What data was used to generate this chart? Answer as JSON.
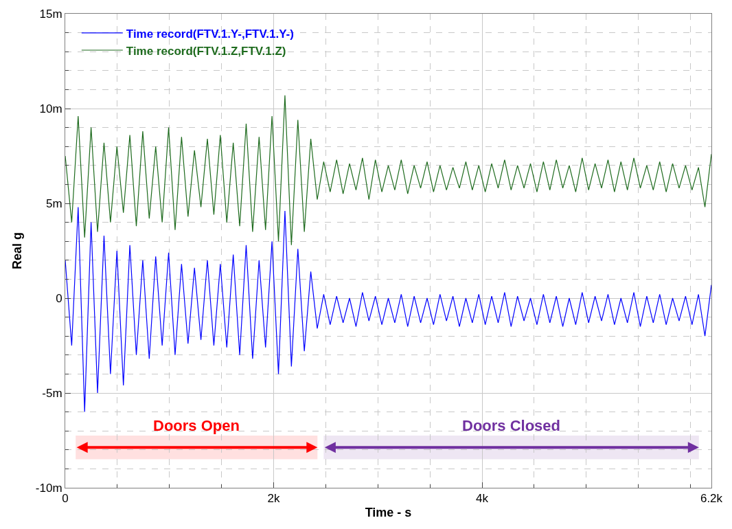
{
  "chart_data": {
    "type": "line",
    "xlabel": "Time - s",
    "ylabel": "Real g",
    "xlim": [
      0,
      6200
    ],
    "ylim": [
      -10,
      15
    ],
    "xticks": [
      0,
      {
        "value": 2000,
        "label": "2k"
      },
      {
        "value": 4000,
        "label": "4k"
      },
      {
        "value": 6200,
        "label": "6.2k"
      }
    ],
    "yticks": [
      {
        "value": -10,
        "label": "-10m"
      },
      {
        "value": -5,
        "label": "-5m"
      },
      0,
      {
        "value": 5,
        "label": "5m"
      },
      {
        "value": 10,
        "label": "10m"
      },
      {
        "value": 15,
        "label": "15m"
      }
    ],
    "grid": true,
    "legend": "top left",
    "line_style": "solid",
    "x": [
      0,
      62,
      124,
      186,
      248,
      310,
      372,
      434,
      496,
      558,
      620,
      682,
      744,
      806,
      868,
      930,
      992,
      1054,
      1116,
      1178,
      1240,
      1302,
      1364,
      1426,
      1488,
      1550,
      1612,
      1674,
      1736,
      1798,
      1860,
      1922,
      1984,
      2046,
      2108,
      2170,
      2232,
      2294,
      2356,
      2418,
      2480,
      2542,
      2604,
      2666,
      2728,
      2790,
      2852,
      2914,
      2976,
      3038,
      3100,
      3162,
      3224,
      3286,
      3348,
      3410,
      3472,
      3534,
      3596,
      3658,
      3720,
      3782,
      3844,
      3906,
      3968,
      4030,
      4092,
      4154,
      4216,
      4278,
      4340,
      4402,
      4464,
      4526,
      4588,
      4650,
      4712,
      4774,
      4836,
      4898,
      4960,
      5022,
      5084,
      5146,
      5208,
      5270,
      5332,
      5394,
      5456,
      5518,
      5580,
      5642,
      5704,
      5766,
      5828,
      5890,
      5952,
      6014,
      6076,
      6138,
      6200
    ],
    "series": [
      {
        "name": "Time record(FTV.1.Y-,FTV.1.Y-)",
        "color": "#0000ff",
        "values": [
          2.0,
          -2.5,
          4.8,
          -6.0,
          4.0,
          -5.0,
          3.3,
          -4.0,
          2.5,
          -4.6,
          2.8,
          -3.0,
          2.0,
          -3.2,
          2.2,
          -2.5,
          2.4,
          -3.0,
          1.8,
          -2.4,
          1.6,
          -2.2,
          2.0,
          -2.5,
          1.8,
          -2.6,
          2.3,
          -3.0,
          2.8,
          -3.2,
          2.0,
          -2.6,
          3.0,
          -4.0,
          4.6,
          -3.6,
          2.6,
          -2.8,
          1.4,
          -1.6,
          0.2,
          -1.4,
          0.1,
          -1.3,
          0.0,
          -1.5,
          0.3,
          -1.2,
          0.1,
          -1.4,
          0.0,
          -1.3,
          0.2,
          -1.5,
          0.1,
          -1.3,
          0.0,
          -1.4,
          0.2,
          -1.2,
          0.1,
          -1.5,
          0.0,
          -1.3,
          0.2,
          -1.4,
          0.1,
          -1.3,
          0.3,
          -1.5,
          0.1,
          -1.2,
          0.0,
          -1.4,
          0.2,
          -1.3,
          0.1,
          -1.5,
          0.0,
          -1.4,
          0.3,
          -1.3,
          0.1,
          -1.2,
          0.2,
          -1.4,
          0.0,
          -1.3,
          0.3,
          -1.5,
          0.1,
          -1.3,
          0.2,
          -1.4,
          0.0,
          -1.2,
          0.1,
          -1.4,
          0.2,
          -2.0,
          0.7
        ]
      },
      {
        "name": "Time record(FTV.1.Z,FTV.1.Z)",
        "color": "#1e6b1e",
        "values": [
          7.5,
          4.0,
          9.6,
          3.2,
          9.0,
          3.5,
          8.2,
          4.0,
          8.0,
          4.5,
          8.6,
          3.8,
          8.8,
          4.2,
          8.0,
          4.0,
          9.0,
          3.6,
          8.5,
          4.3,
          7.8,
          4.8,
          8.4,
          4.4,
          8.6,
          4.0,
          8.2,
          3.8,
          9.2,
          3.5,
          8.5,
          3.6,
          9.6,
          3.0,
          10.7,
          2.8,
          9.4,
          3.5,
          8.4,
          5.2,
          7.2,
          5.6,
          7.3,
          5.5,
          7.1,
          5.7,
          7.4,
          5.2,
          7.3,
          5.6,
          7.0,
          5.7,
          7.3,
          5.5,
          7.0,
          5.8,
          7.2,
          5.6,
          7.0,
          5.7,
          6.9,
          5.8,
          7.2,
          5.7,
          7.0,
          5.6,
          7.1,
          5.8,
          7.3,
          5.7,
          7.0,
          5.8,
          7.1,
          5.6,
          7.2,
          5.7,
          7.3,
          5.8,
          7.0,
          5.6,
          7.4,
          5.7,
          7.1,
          5.8,
          7.3,
          5.6,
          7.2,
          5.7,
          7.4,
          5.8,
          7.0,
          5.7,
          7.2,
          5.6,
          7.1,
          5.8,
          7.0,
          5.7,
          6.9,
          4.8,
          7.6
        ]
      }
    ],
    "bands": [
      {
        "axis": "x",
        "from": 100,
        "to": 2420,
        "label": "Doors Open",
        "color": "#ff0000"
      },
      {
        "axis": "x",
        "from": 2480,
        "to": 6080,
        "label": "Doors Closed",
        "color": "#7030a0"
      }
    ]
  }
}
